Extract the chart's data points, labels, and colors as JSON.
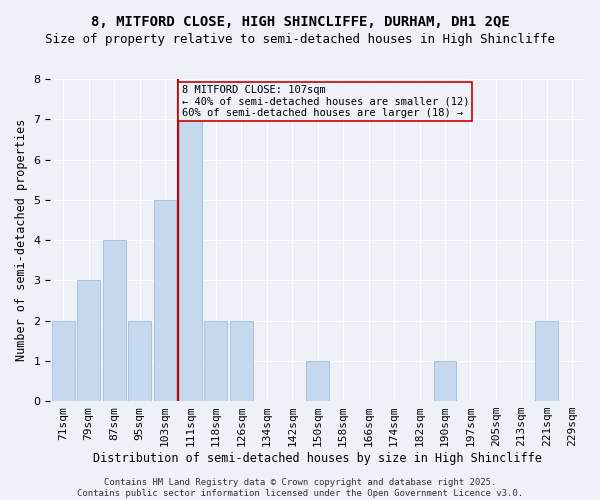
{
  "title": "8, MITFORD CLOSE, HIGH SHINCLIFFE, DURHAM, DH1 2QE",
  "subtitle": "Size of property relative to semi-detached houses in High Shincliffe",
  "xlabel": "Distribution of semi-detached houses by size in High Shincliffe",
  "ylabel": "Number of semi-detached properties",
  "categories": [
    "71sqm",
    "79sqm",
    "87sqm",
    "95sqm",
    "103sqm",
    "111sqm",
    "118sqm",
    "126sqm",
    "134sqm",
    "142sqm",
    "150sqm",
    "158sqm",
    "166sqm",
    "174sqm",
    "182sqm",
    "190sqm",
    "197sqm",
    "205sqm",
    "213sqm",
    "221sqm",
    "229sqm"
  ],
  "values": [
    2,
    3,
    4,
    2,
    5,
    7,
    2,
    2,
    0,
    0,
    1,
    0,
    0,
    0,
    0,
    1,
    0,
    0,
    0,
    2,
    0
  ],
  "bar_color": "#c5d8ed",
  "bar_edge_color": "#a8c4de",
  "vline_bin_index": 5,
  "annotation_text": "8 MITFORD CLOSE: 107sqm\n← 40% of semi-detached houses are smaller (12)\n60% of semi-detached houses are larger (18) →",
  "vline_color": "#cc0000",
  "box_edge_color": "#cc0000",
  "footer": "Contains HM Land Registry data © Crown copyright and database right 2025.\nContains public sector information licensed under the Open Government Licence v3.0.",
  "ylim": [
    0,
    8
  ],
  "yticks": [
    0,
    1,
    2,
    3,
    4,
    5,
    6,
    7,
    8
  ],
  "background_color": "#eef2f8",
  "title_fontsize": 10,
  "subtitle_fontsize": 9,
  "axis_label_fontsize": 8.5,
  "tick_fontsize": 8,
  "annotation_fontsize": 7.5,
  "footer_fontsize": 6.5
}
